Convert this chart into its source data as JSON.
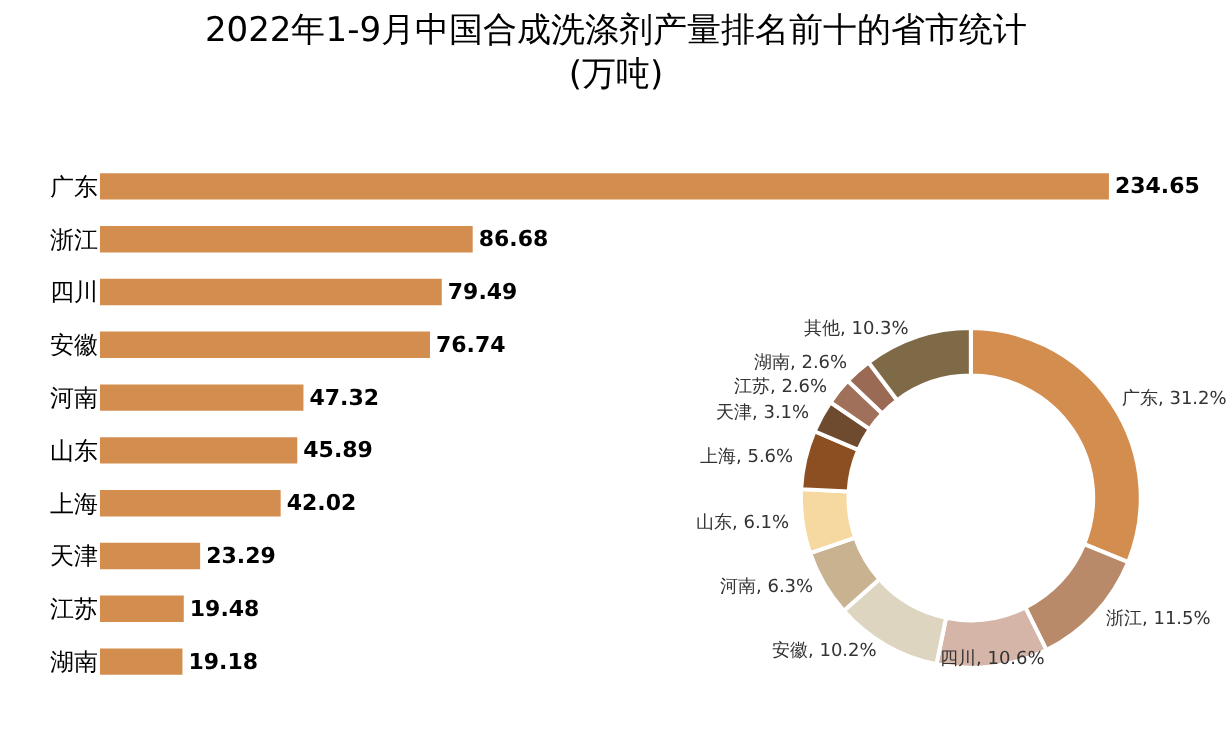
{
  "chart_data": [
    {
      "type": "bar",
      "orientation": "horizontal",
      "title": "2022年1-9月中国合成洗涤剂产量排名前十的省市统计\n(万吨)",
      "categories": [
        "广东",
        "浙江",
        "四川",
        "安徽",
        "河南",
        "山东",
        "上海",
        "天津",
        "江苏",
        "湖南"
      ],
      "values": [
        234.65,
        86.68,
        79.49,
        76.74,
        47.32,
        45.89,
        42.02,
        23.29,
        19.48,
        19.18
      ],
      "color": "#d38d4f",
      "data_labels": true,
      "grid": false,
      "legend": false
    },
    {
      "type": "donut",
      "categories": [
        "广东",
        "浙江",
        "四川",
        "安徽",
        "河南",
        "山东",
        "上海",
        "天津",
        "江苏",
        "湖南",
        "其他"
      ],
      "values": [
        31.2,
        11.5,
        10.6,
        10.2,
        6.3,
        6.1,
        5.6,
        3.1,
        2.6,
        2.6,
        10.3
      ],
      "value_labels": [
        "31.2%",
        "11.5%",
        "10.6%",
        "10.2%",
        "6.3%",
        "6.1%",
        "5.6%",
        "3.1%",
        "2.6%",
        "2.6%",
        "10.3%"
      ],
      "colors": [
        "#d38d4f",
        "#b88a6a",
        "#d4b5a8",
        "#ddd5c0",
        "#c8b28f",
        "#f6d9a0",
        "#8b4f22",
        "#6e4a2e",
        "#a0705a",
        "#9b6a55",
        "#7f6a48"
      ],
      "legend": false
    }
  ]
}
